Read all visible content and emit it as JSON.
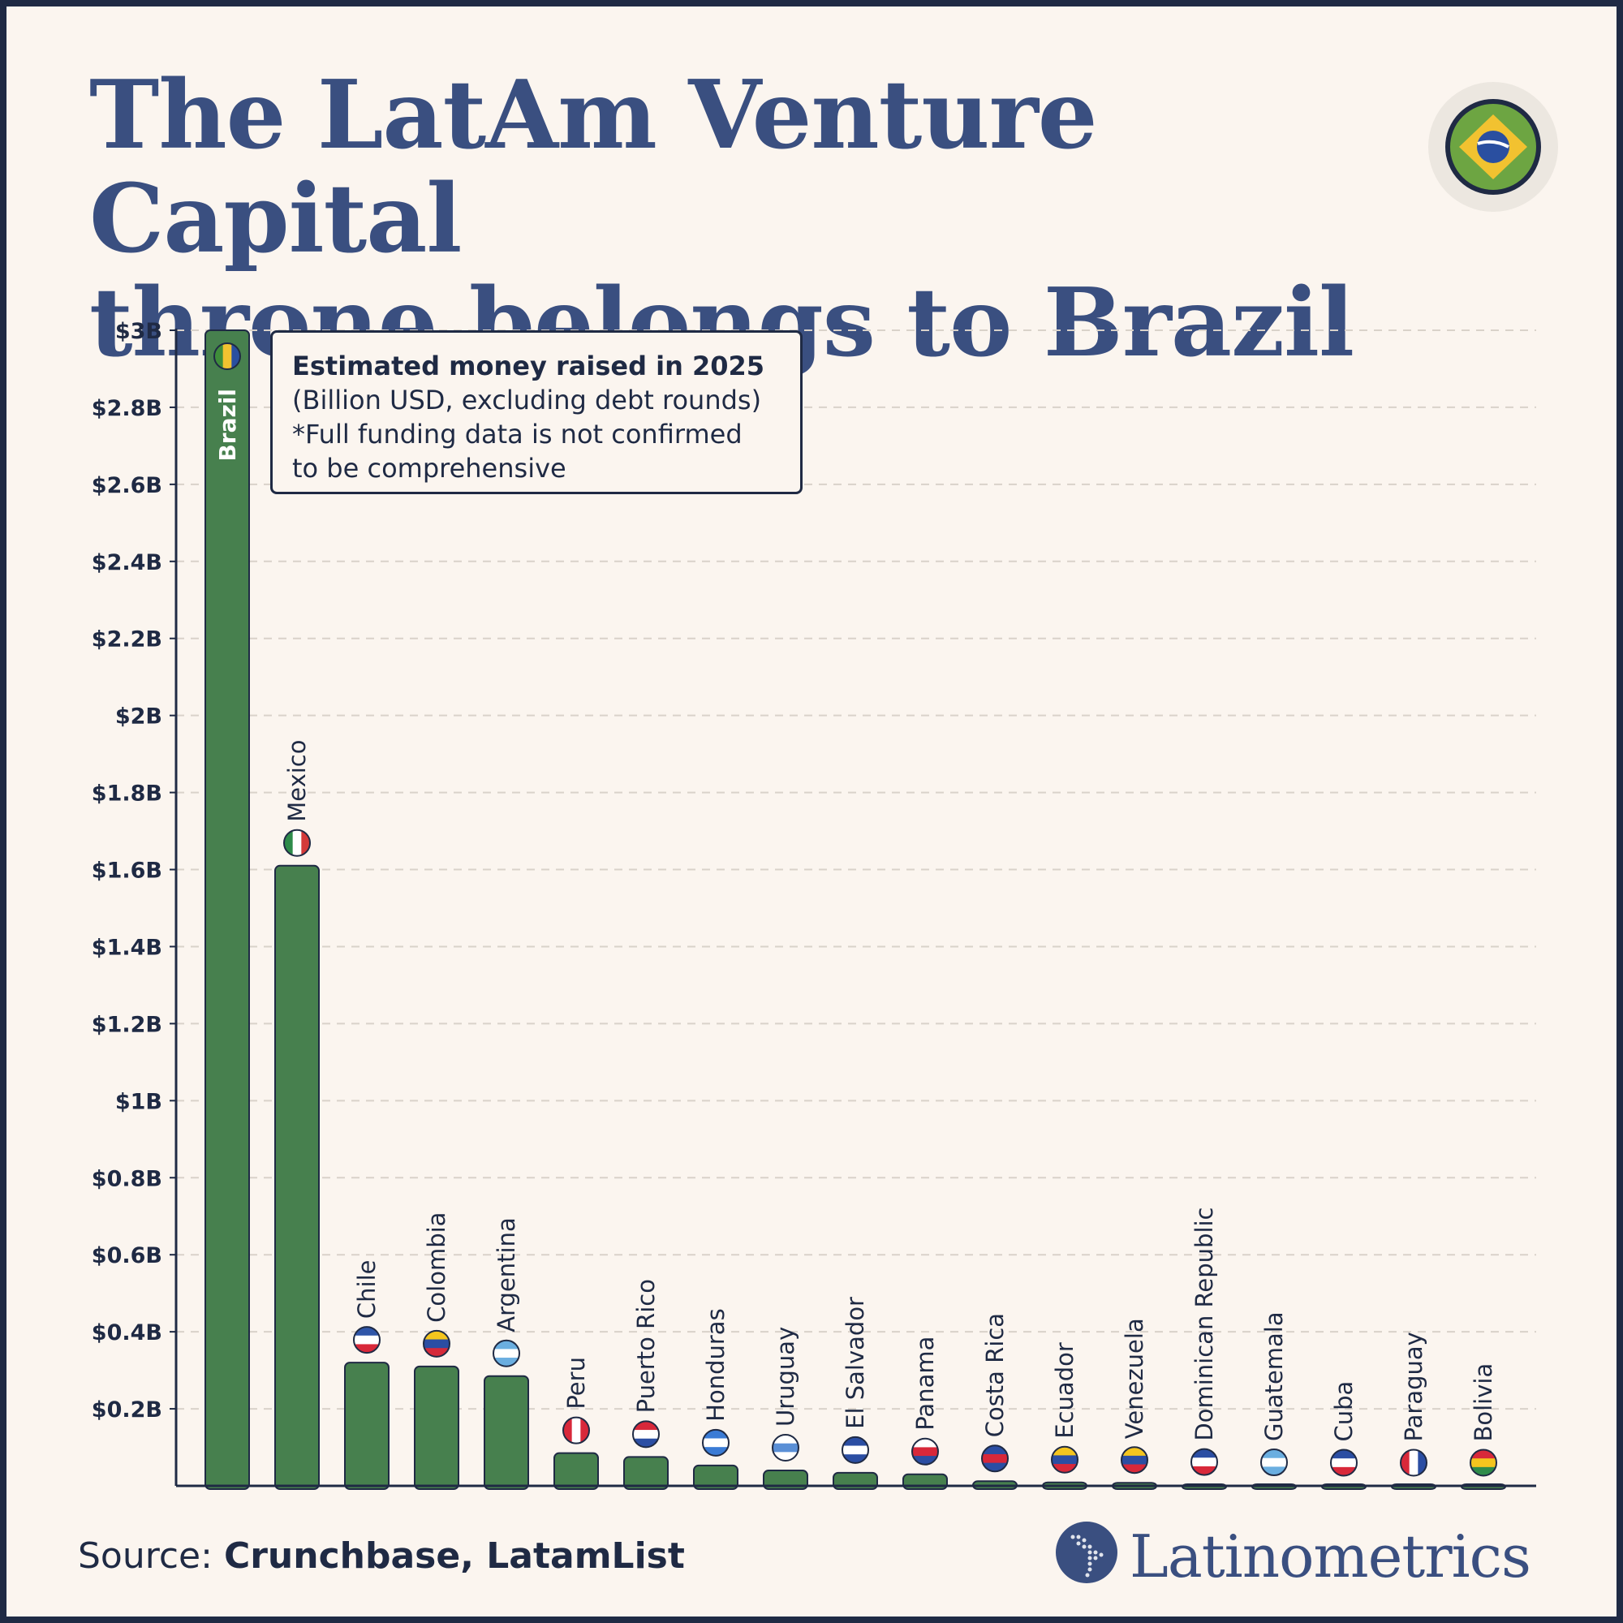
{
  "title_lines": [
    "The LatAm Venture Capital",
    "throne belongs to Brazil"
  ],
  "badge_icon": "brazil-flag-icon",
  "legend": {
    "line1": "Estimated money raised in 2025",
    "line2": "(Billion USD, excluding debt rounds)",
    "line3": "*Full funding data is not confirmed",
    "line4": "to be comprehensive"
  },
  "source": {
    "prefix": "Source: ",
    "names": "Crunchbase, LatamList"
  },
  "brand": {
    "name": "Latinometrics",
    "icon": "latin-america-map-icon"
  },
  "colors": {
    "bar": "#47804e",
    "title": "#3a4f80",
    "text": "#1f2a44",
    "background": "#fbf5ef"
  },
  "chart_data": {
    "type": "bar",
    "categories": [
      "Brazil",
      "Mexico",
      "Chile",
      "Colombia",
      "Argentina",
      "Peru",
      "Puerto Rico",
      "Honduras",
      "Uruguay",
      "El Salvador",
      "Panama",
      "Costa Rica",
      "Ecuador",
      "Venezuela",
      "Dominican Republic",
      "Guatemala",
      "Cuba",
      "Paraguay",
      "Bolivia"
    ],
    "values": [
      3.0,
      1.61,
      0.32,
      0.31,
      0.285,
      0.085,
      0.075,
      0.053,
      0.04,
      0.034,
      0.03,
      0.012,
      0.009,
      0.008,
      0.003,
      0.002,
      0.001,
      0.001,
      0.001
    ],
    "ylim": [
      0,
      3
    ],
    "yticks": [
      {
        "v": 0.2,
        "label": "$0.2B"
      },
      {
        "v": 0.4,
        "label": "$0.4B"
      },
      {
        "v": 0.6,
        "label": "$0.6B"
      },
      {
        "v": 0.8,
        "label": "$0.8B"
      },
      {
        "v": 1.0,
        "label": "$1B"
      },
      {
        "v": 1.2,
        "label": "$1.2B"
      },
      {
        "v": 1.4,
        "label": "$1.4B"
      },
      {
        "v": 1.6,
        "label": "$1.6B"
      },
      {
        "v": 1.8,
        "label": "$1.8B"
      },
      {
        "v": 2.0,
        "label": "$2B"
      },
      {
        "v": 2.2,
        "label": "$2.2B"
      },
      {
        "v": 2.4,
        "label": "$2.4B"
      },
      {
        "v": 2.6,
        "label": "$2.6B"
      },
      {
        "v": 2.8,
        "label": "$2.8B"
      },
      {
        "v": 3.0,
        "label": "$3B"
      }
    ],
    "grid": true,
    "flags": [
      [
        "#3f8d3a",
        "#f2c230",
        "#2a4fa0"
      ],
      [
        "#2e8b4a",
        "#ffffff",
        "#d33a3a"
      ],
      [
        "#2f55a8",
        "#ffffff",
        "#d8283a"
      ],
      [
        "#f4c51e",
        "#2b4ea3",
        "#d52a3a"
      ],
      [
        "#6aaee0",
        "#ffffff",
        "#6aaee0"
      ],
      [
        "#d8283a",
        "#ffffff",
        "#d8283a"
      ],
      [
        "#d8283a",
        "#ffffff",
        "#2b4ea3"
      ],
      [
        "#3a7bd5",
        "#ffffff",
        "#3a7bd5"
      ],
      [
        "#ffffff",
        "#5a8fd6",
        "#ffffff"
      ],
      [
        "#2b4ea3",
        "#ffffff",
        "#2b4ea3"
      ],
      [
        "#ffffff",
        "#d8283a",
        "#2b4ea3"
      ],
      [
        "#2b4ea3",
        "#d8283a",
        "#2b4ea3"
      ],
      [
        "#f4c51e",
        "#2b4ea3",
        "#d8283a"
      ],
      [
        "#f4c51e",
        "#2b4ea3",
        "#d8283a"
      ],
      [
        "#2b4ea3",
        "#ffffff",
        "#d8283a"
      ],
      [
        "#6aaee0",
        "#ffffff",
        "#6aaee0"
      ],
      [
        "#2b4ea3",
        "#ffffff",
        "#d8283a"
      ],
      [
        "#d8283a",
        "#ffffff",
        "#2b4ea3"
      ],
      [
        "#d8283a",
        "#f4c51e",
        "#2e8b4a"
      ]
    ]
  }
}
